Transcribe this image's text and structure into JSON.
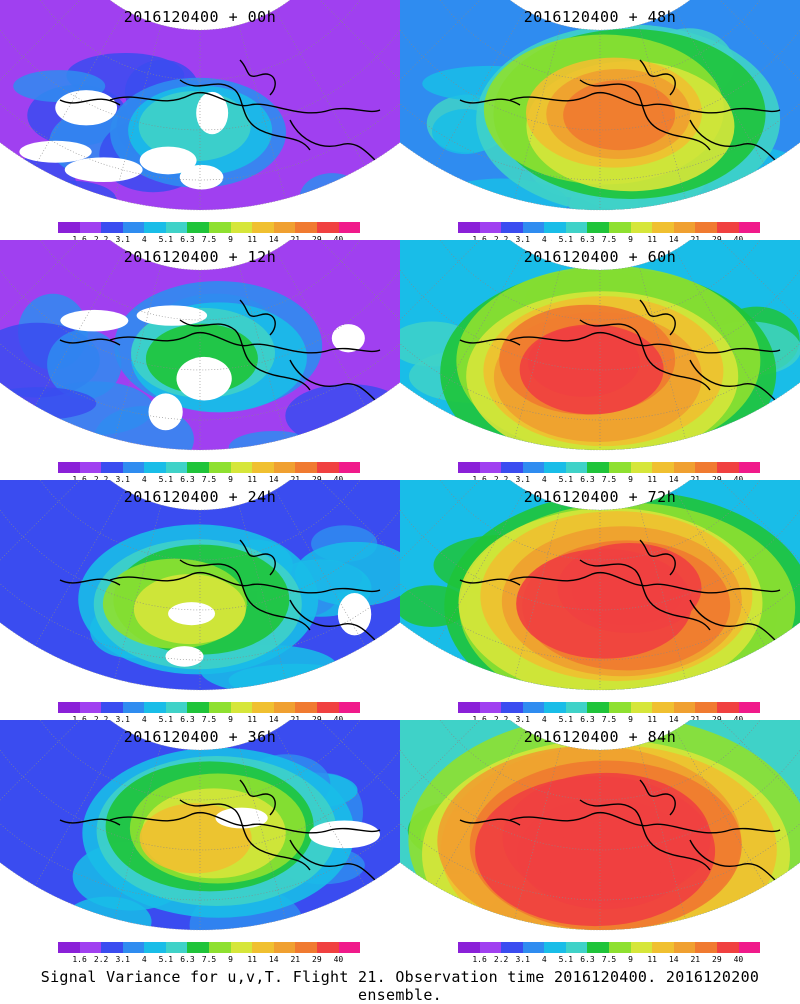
{
  "panels": [
    {
      "title": "2016120400 + 00h",
      "intensity": 0
    },
    {
      "title": "2016120400 + 48h",
      "intensity": 4
    },
    {
      "title": "2016120400 + 12h",
      "intensity": 1
    },
    {
      "title": "2016120400 + 60h",
      "intensity": 5
    },
    {
      "title": "2016120400 + 24h",
      "intensity": 2
    },
    {
      "title": "2016120400 + 72h",
      "intensity": 6
    },
    {
      "title": "2016120400 + 36h",
      "intensity": 3
    },
    {
      "title": "2016120400 + 84h",
      "intensity": 7
    }
  ],
  "colorbar": {
    "colors": [
      "#8a20d8",
      "#a040f0",
      "#3a4cf0",
      "#2f8cf0",
      "#19bde8",
      "#3fd2c8",
      "#1fc43a",
      "#8ee030",
      "#d6e63a",
      "#f0c030",
      "#f0a030",
      "#f07a30",
      "#f04040",
      "#f01a8a"
    ],
    "labels": [
      "1.6",
      "2.2",
      "3.1",
      "4",
      "5.1",
      "6.3",
      "7.5",
      "9",
      "11",
      "14",
      "21",
      "29",
      "40"
    ]
  },
  "caption": "Signal Variance for u,v,T. Flight 21. Observation time 2016120400. 2016120200 ensemble."
}
